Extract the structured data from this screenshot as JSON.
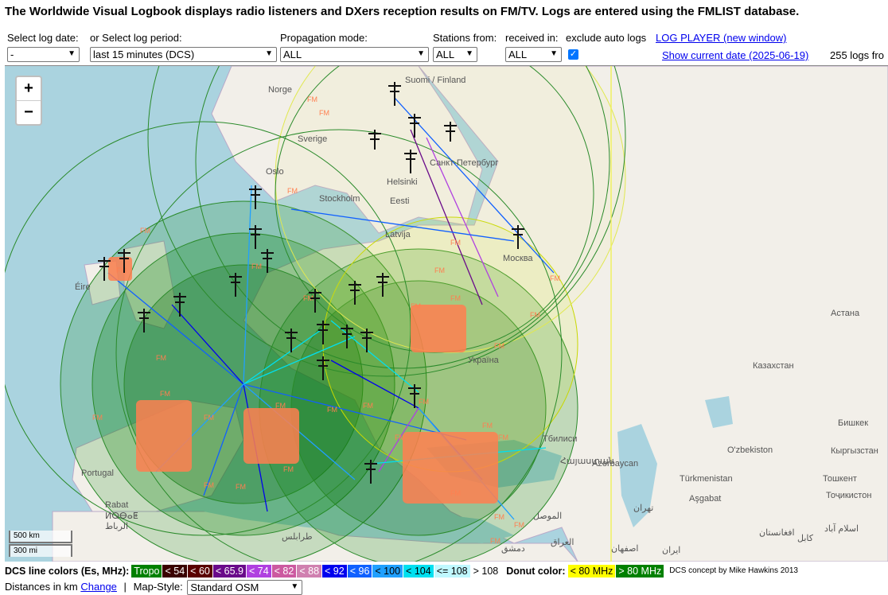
{
  "header": {
    "title": "The Worldwide Visual Logbook displays radio listeners and DXers reception results on FM/TV. Logs are entered using the FMLIST database."
  },
  "controls": {
    "log_date_label": "Select log date:",
    "log_date_value": "-",
    "log_period_label": "or Select log period:",
    "log_period_value": "last 15 minutes (DCS)",
    "propagation_label": "Propagation mode:",
    "propagation_value": "ALL",
    "stations_from_label": "Stations from:",
    "stations_from_value": "ALL",
    "received_in_label": "received in:",
    "received_in_value": "ALL",
    "exclude_auto_label": "exclude auto logs",
    "exclude_auto_checked": true,
    "log_player_link": "LOG PLAYER (new window)",
    "show_date_link": "Show current date (2025-06-19)",
    "log_count": "255 logs fro"
  },
  "map": {
    "zoom_in": "+",
    "zoom_out": "−",
    "scale_km": "500 km",
    "scale_mi": "300 mi",
    "places": [
      "Suomi / Finland",
      "Norge",
      "Sverige",
      "Oslo",
      "Stockholm",
      "Helsinki",
      "Eesti",
      "Санкт-Петербург",
      "Latvija",
      "Москва",
      "Éire",
      "Portugal",
      "Rabat",
      "ⵍⵕⴱⴰⵟ",
      "الرباط",
      "Azərbaycan",
      "Türkmenistan",
      "Aşgabat",
      "Тошкент",
      "O'zbekiston",
      "Кыргызстан",
      "Бишкек",
      "Астана",
      "Казахстан",
      "Тоҷикистон",
      "تهران",
      "ایران",
      "الموصل",
      "العراق",
      "Тбилиси",
      "اصفهان",
      "کابل",
      "اسلام آباد",
      "افغانستان",
      "طرابلس",
      "Україна",
      "دمشق",
      "Հայաստան"
    ]
  },
  "legend": {
    "title": "DCS line colors (Es, MHz):",
    "items": [
      {
        "label": "Tropo",
        "bg": "#008000",
        "fg": "#ffffff"
      },
      {
        "label": "< 54",
        "bg": "#3a0000",
        "fg": "#ffffff"
      },
      {
        "label": "< 60",
        "bg": "#5a0000",
        "fg": "#ffffff"
      },
      {
        "label": "< 65.9",
        "bg": "#6a0a8a",
        "fg": "#ffffff"
      },
      {
        "label": "< 74",
        "bg": "#b040e0",
        "fg": "#ffffff"
      },
      {
        "label": "< 82",
        "bg": "#cc5aa0",
        "fg": "#ffffff"
      },
      {
        "label": "< 88",
        "bg": "#d080b0",
        "fg": "#ffffff"
      },
      {
        "label": "< 92",
        "bg": "#0000ee",
        "fg": "#ffffff"
      },
      {
        "label": "< 96",
        "bg": "#1060ff",
        "fg": "#ffffff"
      },
      {
        "label": "< 100",
        "bg": "#20a0ff",
        "fg": "#000000"
      },
      {
        "label": "< 104",
        "bg": "#00e0f0",
        "fg": "#000000"
      },
      {
        "label": "<= 108",
        "bg": "#c0f8ff",
        "fg": "#000000"
      },
      {
        "label": "> 108",
        "bg": "#ffffff",
        "fg": "#000000"
      }
    ],
    "donut_title": "Donut color:",
    "donut_items": [
      {
        "label": "< 80 MHz",
        "bg": "#ffff00",
        "fg": "#000000"
      },
      {
        "label": "> 80 MHz",
        "bg": "#008000",
        "fg": "#ffffff"
      }
    ],
    "credit": "DCS concept by Mike Hawkins 2013"
  },
  "footer": {
    "distances_label": "Distances in km",
    "change_link": "Change",
    "separator": "|",
    "map_style_label": "Map-Style:",
    "map_style_value": "Standard OSM"
  }
}
